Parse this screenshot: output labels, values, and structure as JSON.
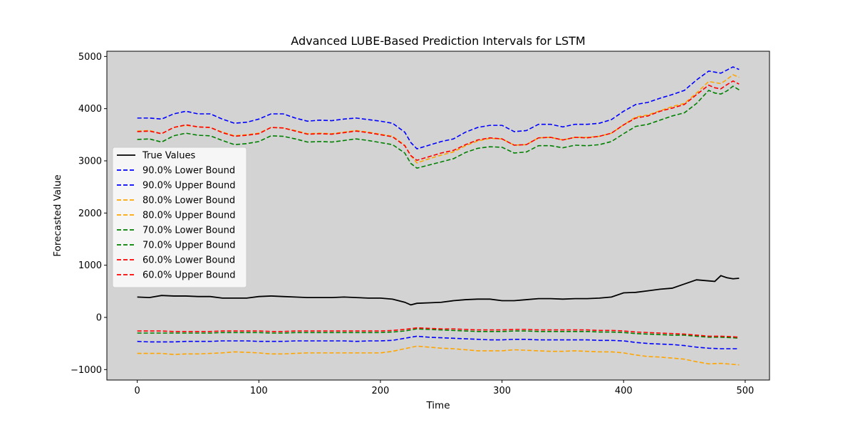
{
  "chart_data": {
    "type": "line",
    "title": "Advanced LUBE-Based Prediction Intervals for LSTM",
    "xlabel": "Time",
    "ylabel": "Forecasted Value",
    "xlim": [
      -25,
      520
    ],
    "ylim": [
      -1200,
      5100
    ],
    "xticks": [
      0,
      100,
      200,
      300,
      400,
      500
    ],
    "xtick_labels": [
      "0",
      "100",
      "200",
      "300",
      "400",
      "500"
    ],
    "yticks": [
      -1000,
      0,
      1000,
      2000,
      3000,
      4000,
      5000
    ],
    "ytick_labels": [
      "−1000",
      "0",
      "1000",
      "2000",
      "3000",
      "4000",
      "5000"
    ],
    "plot_background": "#d3d3d3",
    "grid": false,
    "legend_position": "center-left",
    "series": [
      {
        "name": "True Values",
        "color": "#000000",
        "style": "solid",
        "x": [
          0,
          10,
          20,
          30,
          40,
          50,
          60,
          70,
          80,
          90,
          100,
          110,
          120,
          130,
          140,
          150,
          160,
          170,
          180,
          190,
          200,
          210,
          220,
          225,
          230,
          240,
          250,
          260,
          270,
          280,
          290,
          300,
          310,
          320,
          330,
          340,
          350,
          360,
          370,
          380,
          390,
          400,
          410,
          420,
          430,
          440,
          450,
          460,
          470,
          475,
          480,
          485,
          490,
          495
        ],
        "y": [
          390,
          380,
          420,
          410,
          410,
          400,
          400,
          370,
          370,
          370,
          400,
          410,
          400,
          390,
          380,
          380,
          380,
          390,
          380,
          370,
          370,
          350,
          290,
          240,
          270,
          280,
          290,
          320,
          340,
          350,
          350,
          320,
          320,
          340,
          360,
          360,
          350,
          360,
          360,
          370,
          390,
          470,
          480,
          510,
          540,
          560,
          640,
          720,
          700,
          690,
          800,
          760,
          740,
          750
        ]
      },
      {
        "name": "90.0% Lower Bound",
        "color": "#0000ff",
        "style": "dashed",
        "x": [
          0,
          10,
          20,
          30,
          40,
          50,
          60,
          70,
          80,
          90,
          100,
          110,
          120,
          130,
          140,
          150,
          160,
          170,
          180,
          190,
          200,
          210,
          220,
          230,
          240,
          250,
          260,
          270,
          280,
          290,
          300,
          310,
          320,
          330,
          340,
          350,
          360,
          370,
          380,
          390,
          400,
          410,
          420,
          430,
          440,
          450,
          460,
          470,
          480,
          490,
          495
        ],
        "y": [
          -460,
          -470,
          -470,
          -470,
          -460,
          -460,
          -460,
          -450,
          -450,
          -450,
          -460,
          -460,
          -460,
          -450,
          -450,
          -450,
          -450,
          -450,
          -460,
          -450,
          -450,
          -440,
          -400,
          -360,
          -380,
          -390,
          -400,
          -410,
          -420,
          -430,
          -430,
          -420,
          -420,
          -430,
          -430,
          -430,
          -430,
          -430,
          -440,
          -440,
          -450,
          -480,
          -500,
          -510,
          -520,
          -540,
          -570,
          -590,
          -600,
          -600,
          -600
        ]
      },
      {
        "name": "90.0% Upper Bound",
        "color": "#0000ff",
        "style": "dashed",
        "x": [
          0,
          10,
          20,
          30,
          40,
          50,
          60,
          70,
          80,
          90,
          100,
          110,
          120,
          130,
          140,
          150,
          160,
          170,
          180,
          190,
          200,
          210,
          220,
          225,
          230,
          240,
          250,
          260,
          270,
          280,
          290,
          300,
          310,
          320,
          330,
          340,
          350,
          360,
          370,
          380,
          390,
          400,
          410,
          420,
          430,
          440,
          450,
          460,
          470,
          475,
          480,
          485,
          490,
          495
        ],
        "y": [
          3820,
          3820,
          3800,
          3900,
          3950,
          3900,
          3900,
          3800,
          3720,
          3740,
          3800,
          3900,
          3900,
          3820,
          3760,
          3780,
          3770,
          3800,
          3820,
          3790,
          3760,
          3720,
          3550,
          3350,
          3230,
          3300,
          3370,
          3420,
          3550,
          3640,
          3680,
          3680,
          3560,
          3580,
          3700,
          3700,
          3650,
          3700,
          3700,
          3720,
          3790,
          3950,
          4080,
          4120,
          4200,
          4270,
          4350,
          4550,
          4720,
          4700,
          4680,
          4740,
          4800,
          4750
        ]
      },
      {
        "name": "80.0% Lower Bound",
        "color": "#ffa500",
        "style": "dashed",
        "x": [
          0,
          10,
          20,
          30,
          40,
          50,
          60,
          70,
          80,
          90,
          100,
          110,
          120,
          130,
          140,
          150,
          160,
          170,
          180,
          190,
          200,
          210,
          220,
          230,
          240,
          250,
          260,
          270,
          280,
          290,
          300,
          310,
          320,
          330,
          340,
          350,
          360,
          370,
          380,
          390,
          400,
          410,
          420,
          430,
          440,
          450,
          460,
          470,
          480,
          490,
          495
        ],
        "y": [
          -690,
          -690,
          -690,
          -710,
          -700,
          -700,
          -690,
          -680,
          -660,
          -670,
          -680,
          -700,
          -700,
          -690,
          -680,
          -680,
          -680,
          -680,
          -680,
          -680,
          -680,
          -650,
          -600,
          -550,
          -570,
          -590,
          -600,
          -620,
          -640,
          -640,
          -640,
          -620,
          -630,
          -640,
          -650,
          -650,
          -640,
          -650,
          -660,
          -660,
          -680,
          -720,
          -750,
          -760,
          -780,
          -800,
          -850,
          -890,
          -880,
          -900,
          -910
        ]
      },
      {
        "name": "80.0% Upper Bound",
        "color": "#ffa500",
        "style": "dashed",
        "x": [
          0,
          10,
          20,
          30,
          40,
          50,
          60,
          70,
          80,
          90,
          100,
          110,
          120,
          130,
          140,
          150,
          160,
          170,
          180,
          190,
          200,
          210,
          220,
          225,
          230,
          240,
          250,
          260,
          270,
          280,
          290,
          300,
          310,
          320,
          330,
          340,
          350,
          360,
          370,
          380,
          390,
          400,
          410,
          420,
          430,
          440,
          450,
          460,
          470,
          475,
          480,
          485,
          490,
          495
        ],
        "y": [
          3570,
          3580,
          3520,
          3640,
          3680,
          3650,
          3640,
          3550,
          3480,
          3500,
          3530,
          3640,
          3630,
          3580,
          3520,
          3530,
          3520,
          3550,
          3580,
          3550,
          3510,
          3470,
          3300,
          3100,
          2960,
          3040,
          3110,
          3170,
          3290,
          3380,
          3430,
          3420,
          3300,
          3310,
          3440,
          3450,
          3400,
          3450,
          3450,
          3470,
          3530,
          3690,
          3840,
          3880,
          3960,
          4040,
          4100,
          4300,
          4520,
          4500,
          4480,
          4560,
          4650,
          4600
        ]
      },
      {
        "name": "70.0% Lower Bound",
        "color": "#008000",
        "style": "dashed",
        "x": [
          0,
          10,
          20,
          30,
          40,
          50,
          60,
          70,
          80,
          90,
          100,
          110,
          120,
          130,
          140,
          150,
          160,
          170,
          180,
          190,
          200,
          210,
          220,
          230,
          240,
          250,
          260,
          270,
          280,
          290,
          300,
          310,
          320,
          330,
          340,
          350,
          360,
          370,
          380,
          390,
          400,
          410,
          420,
          430,
          440,
          450,
          460,
          470,
          480,
          490,
          495
        ],
        "y": [
          -300,
          -300,
          -300,
          -300,
          -300,
          -300,
          -300,
          -290,
          -290,
          -290,
          -290,
          -300,
          -300,
          -290,
          -290,
          -290,
          -290,
          -290,
          -290,
          -290,
          -290,
          -280,
          -260,
          -220,
          -230,
          -240,
          -250,
          -260,
          -270,
          -270,
          -270,
          -260,
          -260,
          -270,
          -270,
          -270,
          -270,
          -270,
          -280,
          -280,
          -290,
          -310,
          -320,
          -330,
          -340,
          -340,
          -360,
          -380,
          -380,
          -390,
          -400
        ]
      },
      {
        "name": "70.0% Upper Bound",
        "color": "#008000",
        "style": "dashed",
        "x": [
          0,
          10,
          20,
          30,
          40,
          50,
          60,
          70,
          80,
          90,
          100,
          110,
          120,
          130,
          140,
          150,
          160,
          170,
          180,
          190,
          200,
          210,
          220,
          225,
          230,
          240,
          250,
          260,
          270,
          280,
          290,
          300,
          310,
          320,
          330,
          340,
          350,
          360,
          370,
          380,
          390,
          400,
          410,
          420,
          430,
          440,
          450,
          460,
          470,
          475,
          480,
          485,
          490,
          495
        ],
        "y": [
          3410,
          3420,
          3360,
          3480,
          3530,
          3490,
          3480,
          3390,
          3310,
          3330,
          3370,
          3480,
          3470,
          3420,
          3360,
          3370,
          3360,
          3390,
          3420,
          3390,
          3350,
          3310,
          3150,
          2950,
          2860,
          2920,
          2980,
          3040,
          3160,
          3240,
          3270,
          3260,
          3150,
          3170,
          3290,
          3290,
          3250,
          3300,
          3290,
          3310,
          3370,
          3520,
          3660,
          3700,
          3780,
          3860,
          3920,
          4100,
          4350,
          4300,
          4280,
          4340,
          4430,
          4360
        ]
      },
      {
        "name": "60.0% Lower Bound",
        "color": "#ff0000",
        "style": "dashed",
        "x": [
          0,
          10,
          20,
          30,
          40,
          50,
          60,
          70,
          80,
          90,
          100,
          110,
          120,
          130,
          140,
          150,
          160,
          170,
          180,
          190,
          200,
          210,
          220,
          230,
          240,
          250,
          260,
          270,
          280,
          290,
          300,
          310,
          320,
          330,
          340,
          350,
          360,
          370,
          380,
          390,
          400,
          410,
          420,
          430,
          440,
          450,
          460,
          470,
          480,
          490,
          495
        ],
        "y": [
          -260,
          -260,
          -260,
          -270,
          -270,
          -270,
          -270,
          -260,
          -260,
          -260,
          -260,
          -270,
          -270,
          -260,
          -260,
          -260,
          -260,
          -260,
          -260,
          -260,
          -260,
          -250,
          -230,
          -200,
          -210,
          -220,
          -220,
          -230,
          -240,
          -240,
          -240,
          -230,
          -230,
          -240,
          -240,
          -240,
          -240,
          -240,
          -250,
          -250,
          -260,
          -280,
          -290,
          -300,
          -310,
          -320,
          -340,
          -360,
          -360,
          -370,
          -380
        ]
      },
      {
        "name": "60.0% Upper Bound",
        "color": "#ff0000",
        "style": "dashed",
        "x": [
          0,
          10,
          20,
          30,
          40,
          50,
          60,
          70,
          80,
          90,
          100,
          110,
          120,
          130,
          140,
          150,
          160,
          170,
          180,
          190,
          200,
          210,
          220,
          225,
          230,
          240,
          250,
          260,
          270,
          280,
          290,
          300,
          310,
          320,
          330,
          340,
          350,
          360,
          370,
          380,
          390,
          400,
          410,
          420,
          430,
          440,
          450,
          460,
          470,
          475,
          480,
          485,
          490,
          495
        ],
        "y": [
          3560,
          3570,
          3520,
          3640,
          3690,
          3650,
          3640,
          3540,
          3470,
          3490,
          3520,
          3640,
          3630,
          3570,
          3510,
          3520,
          3510,
          3540,
          3570,
          3540,
          3500,
          3460,
          3290,
          3100,
          3010,
          3080,
          3150,
          3200,
          3310,
          3400,
          3440,
          3420,
          3300,
          3310,
          3440,
          3450,
          3400,
          3450,
          3440,
          3470,
          3530,
          3690,
          3820,
          3860,
          3950,
          4010,
          4080,
          4270,
          4450,
          4400,
          4380,
          4460,
          4530,
          4470
        ]
      }
    ]
  }
}
